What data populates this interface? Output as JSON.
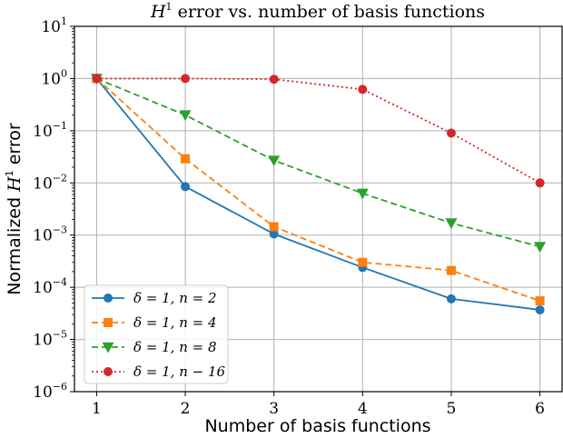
{
  "chart_data": {
    "type": "line",
    "title": "H¹ error vs. number of basis functions",
    "title_parts": {
      "var": "H",
      "sup": "1",
      "rest": " error vs. number of basis functions"
    },
    "xlabel": "Number of basis functions",
    "ylabel": "Normalized H¹ error",
    "ylabel_parts": {
      "pre": "Normalized ",
      "var": "H",
      "sup": "1",
      "post": " error"
    },
    "x": [
      1,
      2,
      3,
      4,
      5,
      6
    ],
    "xlim": [
      0.75,
      6.25
    ],
    "ylim": [
      1e-06,
      10
    ],
    "yscale": "log",
    "xticks": [
      "1",
      "2",
      "3",
      "4",
      "5",
      "6"
    ],
    "yticks": [
      {
        "base": "10",
        "exp": "1"
      },
      {
        "base": "10",
        "exp": "0"
      },
      {
        "base": "10",
        "exp": "−1"
      },
      {
        "base": "10",
        "exp": "−2"
      },
      {
        "base": "10",
        "exp": "−3"
      },
      {
        "base": "10",
        "exp": "−4"
      },
      {
        "base": "10",
        "exp": "−5"
      },
      {
        "base": "10",
        "exp": "−6"
      }
    ],
    "grid": true,
    "legend_position": "lower-left",
    "series": [
      {
        "name": "δ = 1, n = 2",
        "color": "#1f77b4",
        "marker": "circle",
        "linestyle": "solid",
        "values": [
          1.0,
          0.0085,
          0.00105,
          0.00024,
          6e-05,
          3.7e-05
        ]
      },
      {
        "name": "δ = 1, n = 4",
        "color": "#ff7f0e",
        "marker": "square",
        "linestyle": "dashed",
        "values": [
          1.0,
          0.029,
          0.00145,
          0.0003,
          0.00021,
          5.5e-05
        ]
      },
      {
        "name": "δ = 1, n = 8",
        "color": "#2ca02c",
        "marker": "triangle-down",
        "linestyle": "dashed",
        "values": [
          1.0,
          0.2,
          0.027,
          0.0063,
          0.0017,
          0.0006
        ]
      },
      {
        "name": "δ = 1, n − 16",
        "color": "#d62728",
        "marker": "circle",
        "linestyle": "dotted",
        "values": [
          1.0,
          1.0,
          0.97,
          0.62,
          0.09,
          0.01
        ]
      }
    ]
  }
}
